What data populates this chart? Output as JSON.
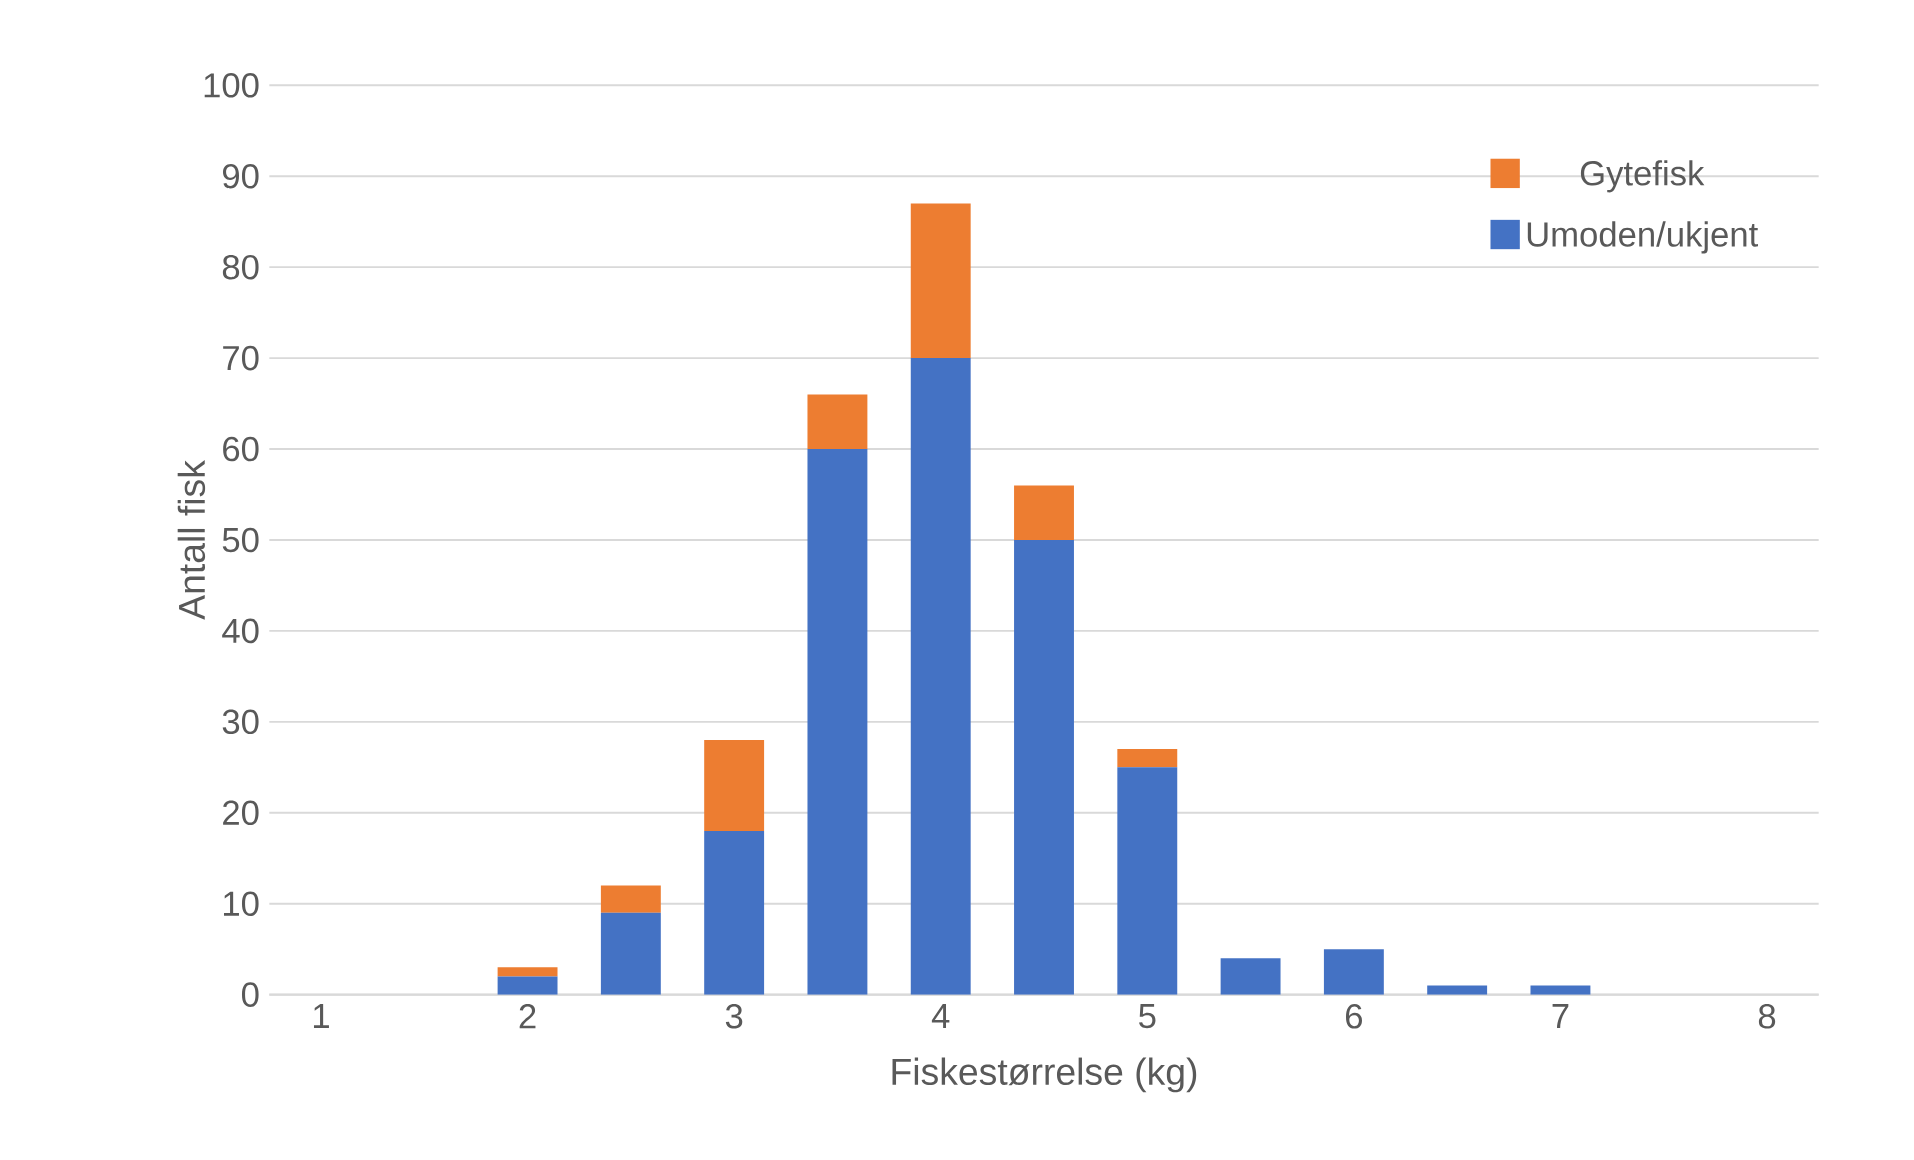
{
  "chart_data": {
    "type": "bar",
    "stacked": true,
    "xlabel": "Fiskestørrelse (kg)",
    "ylabel": "Antall fisk",
    "categories": [
      "1",
      null,
      "2",
      null,
      "3",
      null,
      "4",
      null,
      "5",
      null,
      "6",
      null,
      "7",
      null,
      "8"
    ],
    "series": [
      {
        "name": "Umoden/ukjent",
        "color": "#4472c4",
        "values": [
          0,
          0,
          2,
          9,
          18,
          60,
          70,
          50,
          25,
          4,
          5,
          1,
          1,
          0,
          0
        ]
      },
      {
        "name": "Gytefisk",
        "color": "#ed7d31",
        "values": [
          0,
          0,
          1,
          3,
          10,
          6,
          17,
          6,
          2,
          0,
          0,
          0,
          0,
          0,
          0
        ]
      }
    ],
    "ylim": [
      0,
      100
    ],
    "yticks": [
      0,
      10,
      20,
      30,
      40,
      50,
      60,
      70,
      80,
      90,
      100
    ],
    "grid": "y",
    "legend": "top right"
  }
}
